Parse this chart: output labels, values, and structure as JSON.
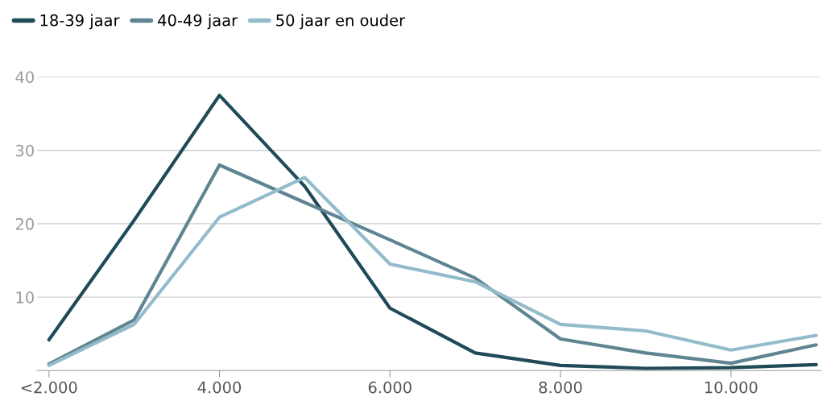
{
  "chart_data": {
    "type": "line",
    "x": [
      2000,
      3000,
      4000,
      5000,
      6000,
      7000,
      8000,
      9000,
      10000,
      11000
    ],
    "series": [
      {
        "name": "18-39 jaar",
        "color": "#1f4a57",
        "values": [
          4.2,
          20.5,
          37.5,
          25.1,
          8.5,
          2.4,
          0.7,
          0.3,
          0.4,
          0.8
        ]
      },
      {
        "name": "40-49 jaar",
        "color": "#5f8592",
        "values": [
          0.9,
          6.9,
          28.0,
          22.9,
          17.8,
          12.6,
          4.3,
          2.4,
          1.0,
          3.5
        ]
      },
      {
        "name": "50 jaar en ouder",
        "color": "#93bccb",
        "values": [
          0.7,
          6.3,
          20.9,
          26.3,
          14.5,
          12.1,
          6.3,
          5.4,
          2.8,
          4.8
        ]
      }
    ],
    "xlim": [
      1860,
      11060
    ],
    "xticks": [
      {
        "value": 2000,
        "label": "<2.000"
      },
      {
        "value": 4000,
        "label": "4.000"
      },
      {
        "value": 6000,
        "label": "6.000"
      },
      {
        "value": 8000,
        "label": "8.000"
      },
      {
        "value": 10000,
        "label": "10.000"
      }
    ],
    "ylim": [
      0,
      40
    ],
    "yticks": [
      10,
      20,
      30,
      40
    ],
    "grid": "y",
    "legend": "top left",
    "marker": "none",
    "line_style": "solid"
  }
}
